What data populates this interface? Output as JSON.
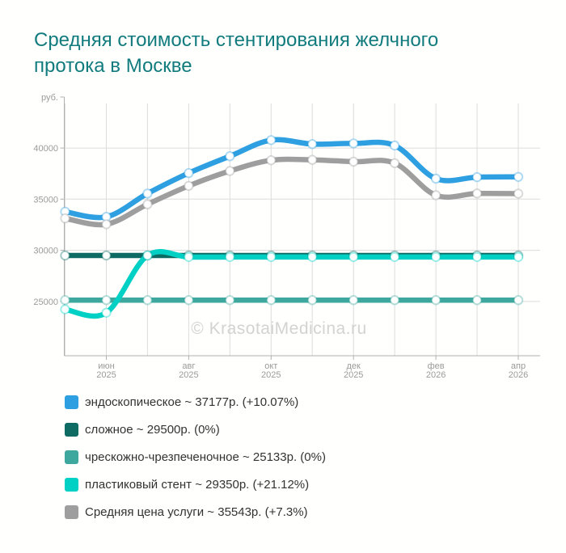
{
  "title": "Средняя стоимость стентирования желчного протока в Москве",
  "watermark": "© KrasotaiMedicina.ru",
  "colors": {
    "title": "#127b7e",
    "gridline": "#dcdcdc",
    "axis": "#b0b0b0",
    "tick_label": "#9b9b9b",
    "watermark": "#d3d3d3",
    "legend_text": "#333333"
  },
  "chart_data": {
    "type": "line",
    "title": "Средняя стоимость стентирования желчного протока в Москве",
    "y_unit": "руб.",
    "x": [
      "май 2025",
      "июн 2025",
      "июл 2025",
      "авг 2025",
      "сен 2025",
      "окт 2025",
      "ноя 2025",
      "дек 2025",
      "янв 2026",
      "фев 2026",
      "мар 2026",
      "апр 2026"
    ],
    "x_ticks": [
      {
        "index": 1,
        "month": "июн",
        "year": "2025"
      },
      {
        "index": 3,
        "month": "авг",
        "year": "2025"
      },
      {
        "index": 5,
        "month": "окт",
        "year": "2025"
      },
      {
        "index": 7,
        "month": "дек",
        "year": "2025"
      },
      {
        "index": 9,
        "month": "фев",
        "year": "2026"
      },
      {
        "index": 11,
        "month": "апр",
        "year": "2026"
      }
    ],
    "y_ticks": [
      25000,
      30000,
      35000,
      40000
    ],
    "ylim": [
      19700,
      44350
    ],
    "grid": true,
    "legend_position": "bottom",
    "series": [
      {
        "name": "эндоскопическое",
        "color": "#2e9fe0",
        "values": [
          33776,
          33270,
          35550,
          37550,
          39200,
          40770,
          40380,
          40450,
          40240,
          37000,
          37150,
          37177
        ]
      },
      {
        "name": "сложное",
        "color": "#0d6b63",
        "values": [
          29500,
          29500,
          29500,
          29500,
          29500,
          29500,
          29500,
          29500,
          29500,
          29500,
          29500,
          29500
        ]
      },
      {
        "name": "чрескожно-чрезпеченочное",
        "color": "#3ea89e",
        "values": [
          25133,
          25133,
          25133,
          25133,
          25133,
          25133,
          25133,
          25133,
          25133,
          25133,
          25133,
          25133
        ]
      },
      {
        "name": "пластиковый стент",
        "color": "#00d1c4",
        "values": [
          24232,
          23900,
          29500,
          29350,
          29350,
          29350,
          29350,
          29350,
          29350,
          29350,
          29350,
          29350
        ]
      },
      {
        "name": "Средняя цена услуги",
        "color": "#9e9e9e",
        "values": [
          33125,
          32550,
          34500,
          36300,
          37750,
          38800,
          38840,
          38660,
          38520,
          35380,
          35560,
          35543
        ]
      }
    ]
  },
  "legend": {
    "items": [
      {
        "label": "эндоскопическое ~ 37177р. (+10.07%)"
      },
      {
        "label": "сложное ~ 29500р. (0%)"
      },
      {
        "label": "чрескожно-чрезпеченочное ~ 25133р. (0%)"
      },
      {
        "label": "пластиковый стент ~ 29350р. (+21.12%)"
      },
      {
        "label": "Средняя цена услуги ~ 35543р. (+7.3%)"
      }
    ]
  }
}
